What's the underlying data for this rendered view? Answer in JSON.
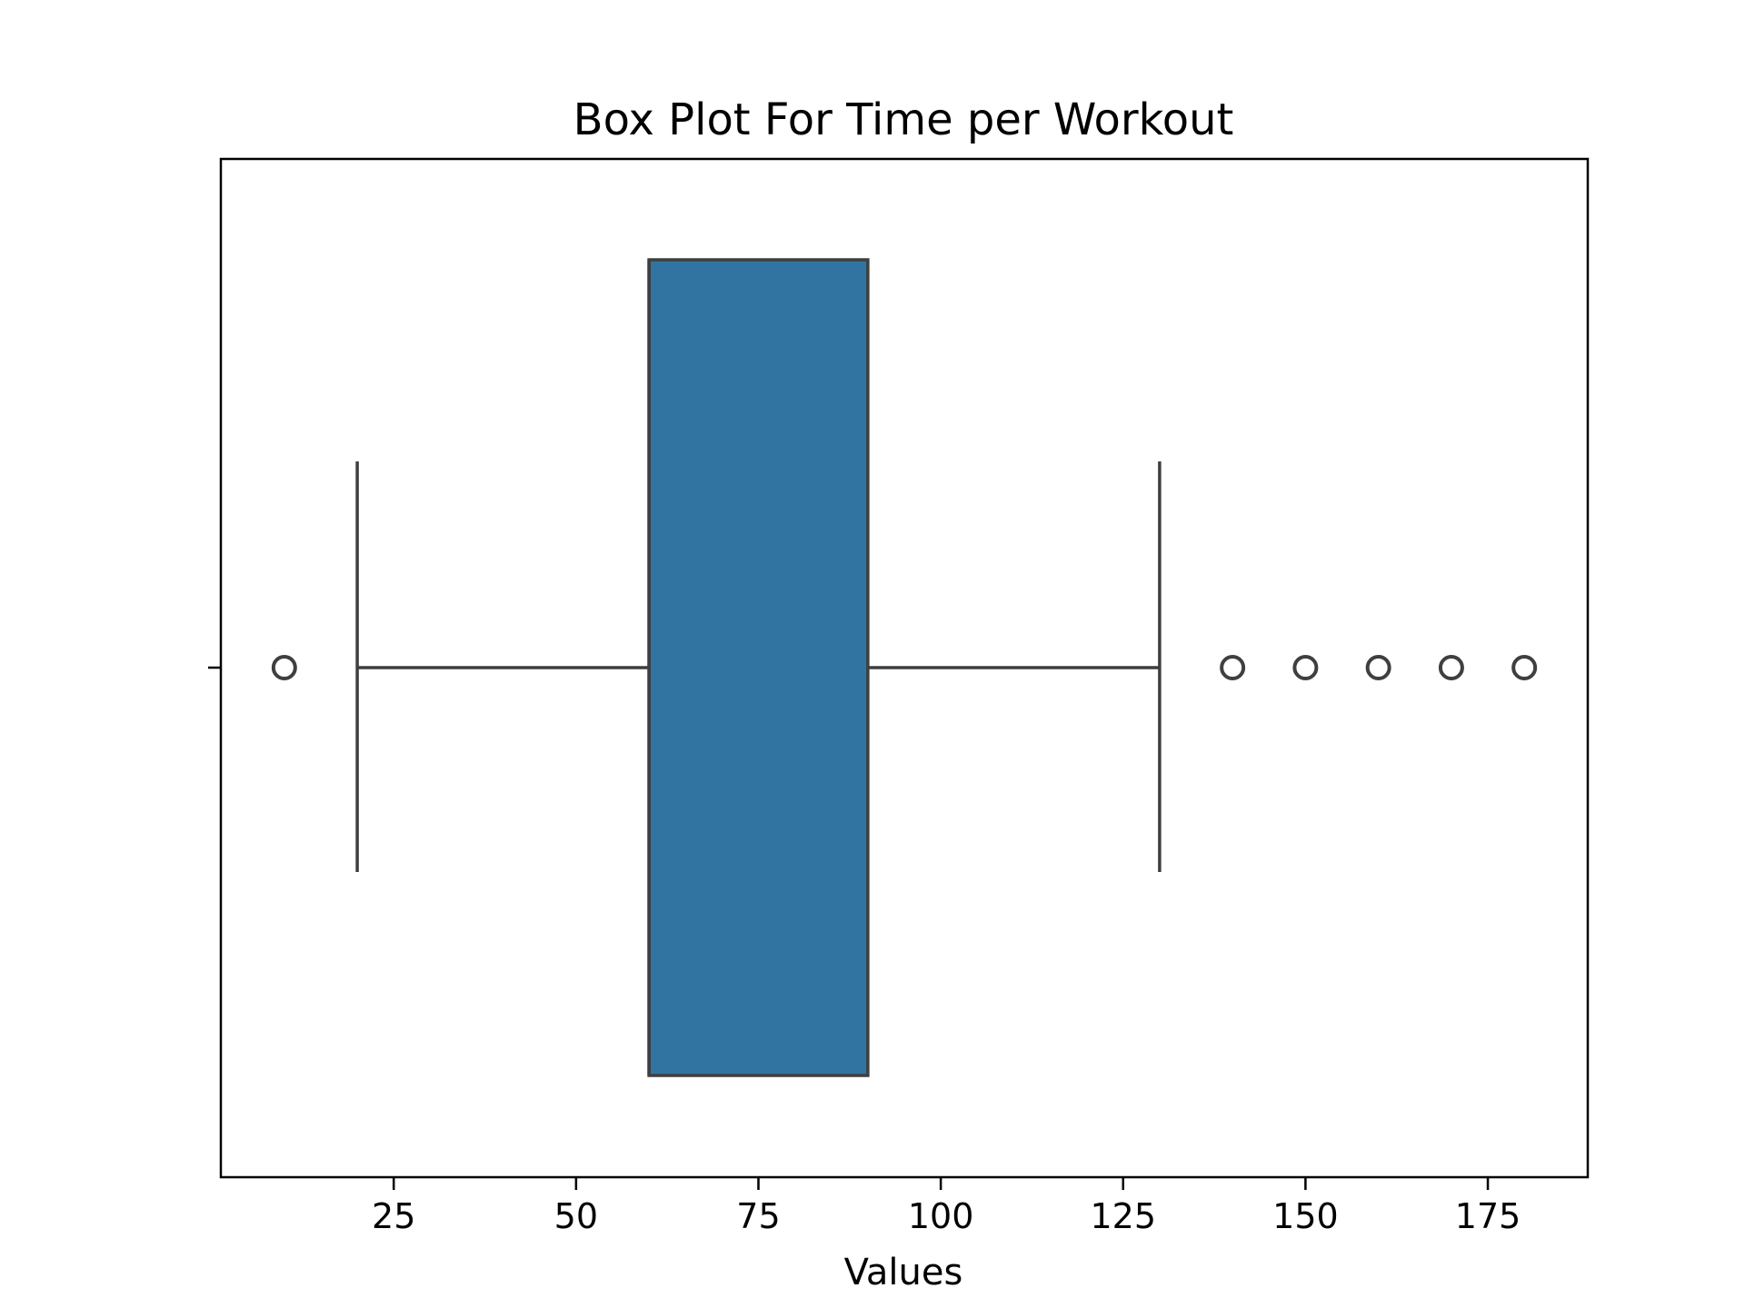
{
  "chart_data": {
    "type": "box",
    "title": "Box Plot For Time per Workout",
    "xlabel": "Values",
    "ylabel": "",
    "orientation": "horizontal",
    "xlim": [
      1.3,
      188.7
    ],
    "xticks": [
      25,
      50,
      75,
      100,
      125,
      150,
      175
    ],
    "xtick_labels": [
      "25",
      "50",
      "75",
      "100",
      "125",
      "150",
      "175"
    ],
    "box": {
      "whisker_low": 20,
      "q1": 60,
      "median": 60,
      "q3": 90,
      "whisker_high": 130
    },
    "outliers": [
      10,
      140,
      150,
      160,
      170,
      180
    ],
    "grid": false,
    "colors": {
      "box_fill": "#3274a1",
      "line": "#3f3f3f",
      "axes": "#000000"
    }
  }
}
